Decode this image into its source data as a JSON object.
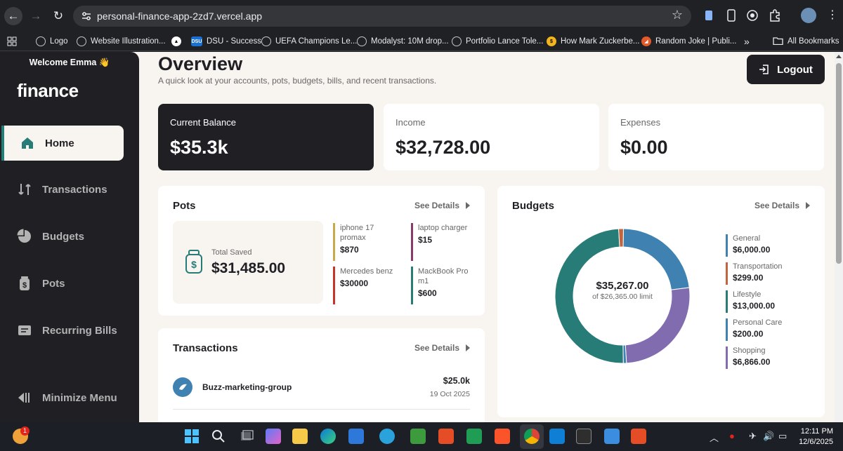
{
  "browser": {
    "url": "personal-finance-app-2zd7.vercel.app",
    "bookmarks": [
      "Logo",
      "Website Illustration...",
      "",
      "DSU - Success",
      "UEFA Champions Le...",
      "Modalyst: 10M drop...",
      "Portfolio Lance Tole...",
      "How Mark Zuckerbe...",
      "Random Joke | Publi..."
    ],
    "more_bookmarks": "»",
    "all_bookmarks": "All Bookmarks"
  },
  "sidebar": {
    "welcome": "Welcome Emma 👋",
    "logo": "finance",
    "items": [
      {
        "label": "Home",
        "icon": "home-icon",
        "active": true
      },
      {
        "label": "Transactions",
        "icon": "transactions-icon",
        "active": false
      },
      {
        "label": "Budgets",
        "icon": "budgets-icon",
        "active": false
      },
      {
        "label": "Pots",
        "icon": "pots-icon",
        "active": false
      },
      {
        "label": "Recurring Bills",
        "icon": "recurring-bills-icon",
        "active": false
      }
    ],
    "minimize_label": "Minimize Menu"
  },
  "header": {
    "title": "Overview",
    "subtitle": "A quick look at your accounts, pots, budgets, bills, and recent transactions.",
    "logout_label": "Logout"
  },
  "stats": {
    "balance": {
      "label": "Current Balance",
      "value": "$35.3k"
    },
    "income": {
      "label": "Income",
      "value": "$32,728.00"
    },
    "expenses": {
      "label": "Expenses",
      "value": "$0.00"
    }
  },
  "pots": {
    "title": "Pots",
    "see_details": "See Details",
    "total_label": "Total Saved",
    "total_value": "$31,485.00",
    "items": [
      {
        "name": "iphone 17 promax",
        "value": "$870",
        "color": "#c9a94a"
      },
      {
        "name": "laptop charger",
        "value": "$15",
        "color": "#8a3a6a"
      },
      {
        "name": "Mercedes benz",
        "value": "$30000",
        "color": "#c8332c"
      },
      {
        "name": "MackBook Pro m1",
        "value": "$600",
        "color": "#277c78"
      }
    ]
  },
  "transactions": {
    "title": "Transactions",
    "see_details": "See Details",
    "items": [
      {
        "name": "Buzz-marketing-group",
        "amount": "$25.0k",
        "date": "19 Oct 2025"
      }
    ]
  },
  "budgets": {
    "title": "Budgets",
    "see_details": "See Details",
    "center_value": "$35,267.00",
    "center_label": "of $26,365.00 limit",
    "items": [
      {
        "name": "General",
        "value": "$6,000.00",
        "color": "#3f82b2"
      },
      {
        "name": "Transportation",
        "value": "$299.00",
        "color": "#c0653e"
      },
      {
        "name": "Lifestyle",
        "value": "$13,000.00",
        "color": "#277c78"
      },
      {
        "name": "Personal Care",
        "value": "$200.00",
        "color": "#3f82b2"
      },
      {
        "name": "Shopping",
        "value": "$6,866.00",
        "color": "#826cb0"
      }
    ]
  },
  "chart_data": {
    "type": "pie",
    "categories": [
      "General",
      "Transportation",
      "Lifestyle",
      "Personal Care",
      "Shopping"
    ],
    "values": [
      6000,
      299,
      13000,
      200,
      6866
    ],
    "colors": [
      "#3f82b2",
      "#c0653e",
      "#277c78",
      "#3f82b2",
      "#826cb0"
    ],
    "donut": true
  },
  "taskbar": {
    "notification_count": "1",
    "time": "12:11 PM",
    "date": "12/6/2025"
  }
}
